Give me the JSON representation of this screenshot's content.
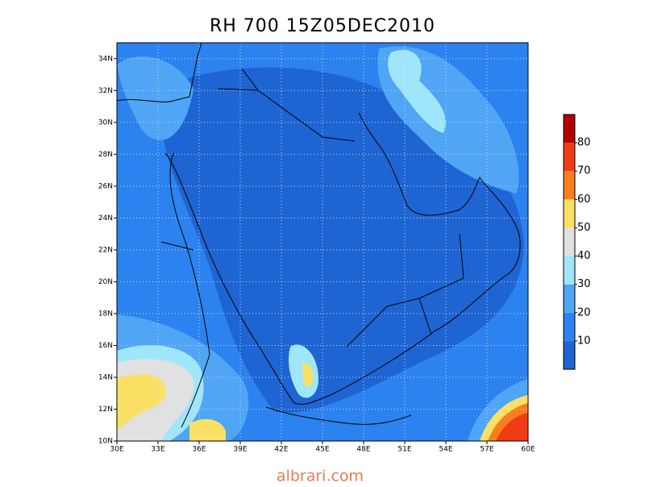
{
  "title": "RH 700 15Z05DEC2010",
  "map": {
    "xlim": [
      30,
      60
    ],
    "ylim": [
      10,
      35
    ],
    "xticks": [
      {
        "value": 30,
        "label": "30E"
      },
      {
        "value": 33,
        "label": "33E"
      },
      {
        "value": 36,
        "label": "36E"
      },
      {
        "value": 39,
        "label": "39E"
      },
      {
        "value": 42,
        "label": "42E"
      },
      {
        "value": 45,
        "label": "45E"
      },
      {
        "value": 48,
        "label": "48E"
      },
      {
        "value": 51,
        "label": "51E"
      },
      {
        "value": 54,
        "label": "54E"
      },
      {
        "value": 57,
        "label": "57E"
      },
      {
        "value": 60,
        "label": "60E"
      }
    ],
    "yticks": [
      {
        "value": 10,
        "label": "10N"
      },
      {
        "value": 12,
        "label": "12N"
      },
      {
        "value": 14,
        "label": "14N"
      },
      {
        "value": 16,
        "label": "16N"
      },
      {
        "value": 18,
        "label": "18N"
      },
      {
        "value": 20,
        "label": "20N"
      },
      {
        "value": 22,
        "label": "22N"
      },
      {
        "value": 24,
        "label": "24N"
      },
      {
        "value": 26,
        "label": "26N"
      },
      {
        "value": 28,
        "label": "28N"
      },
      {
        "value": 30,
        "label": "30N"
      },
      {
        "value": 32,
        "label": "32N"
      },
      {
        "value": 34,
        "label": "34N"
      }
    ],
    "grid": true
  },
  "colorbar": {
    "range": [
      0,
      90
    ],
    "ticks": [
      10,
      20,
      30,
      40,
      50,
      60,
      70,
      80
    ],
    "colors": [
      "#1e64d2",
      "#2c82ee",
      "#50a5f5",
      "#a0e6fa",
      "#e1e1e1",
      "#fae164",
      "#fa7d1e",
      "#f03c14",
      "#b40000"
    ]
  },
  "watermark": "albrari.com"
}
